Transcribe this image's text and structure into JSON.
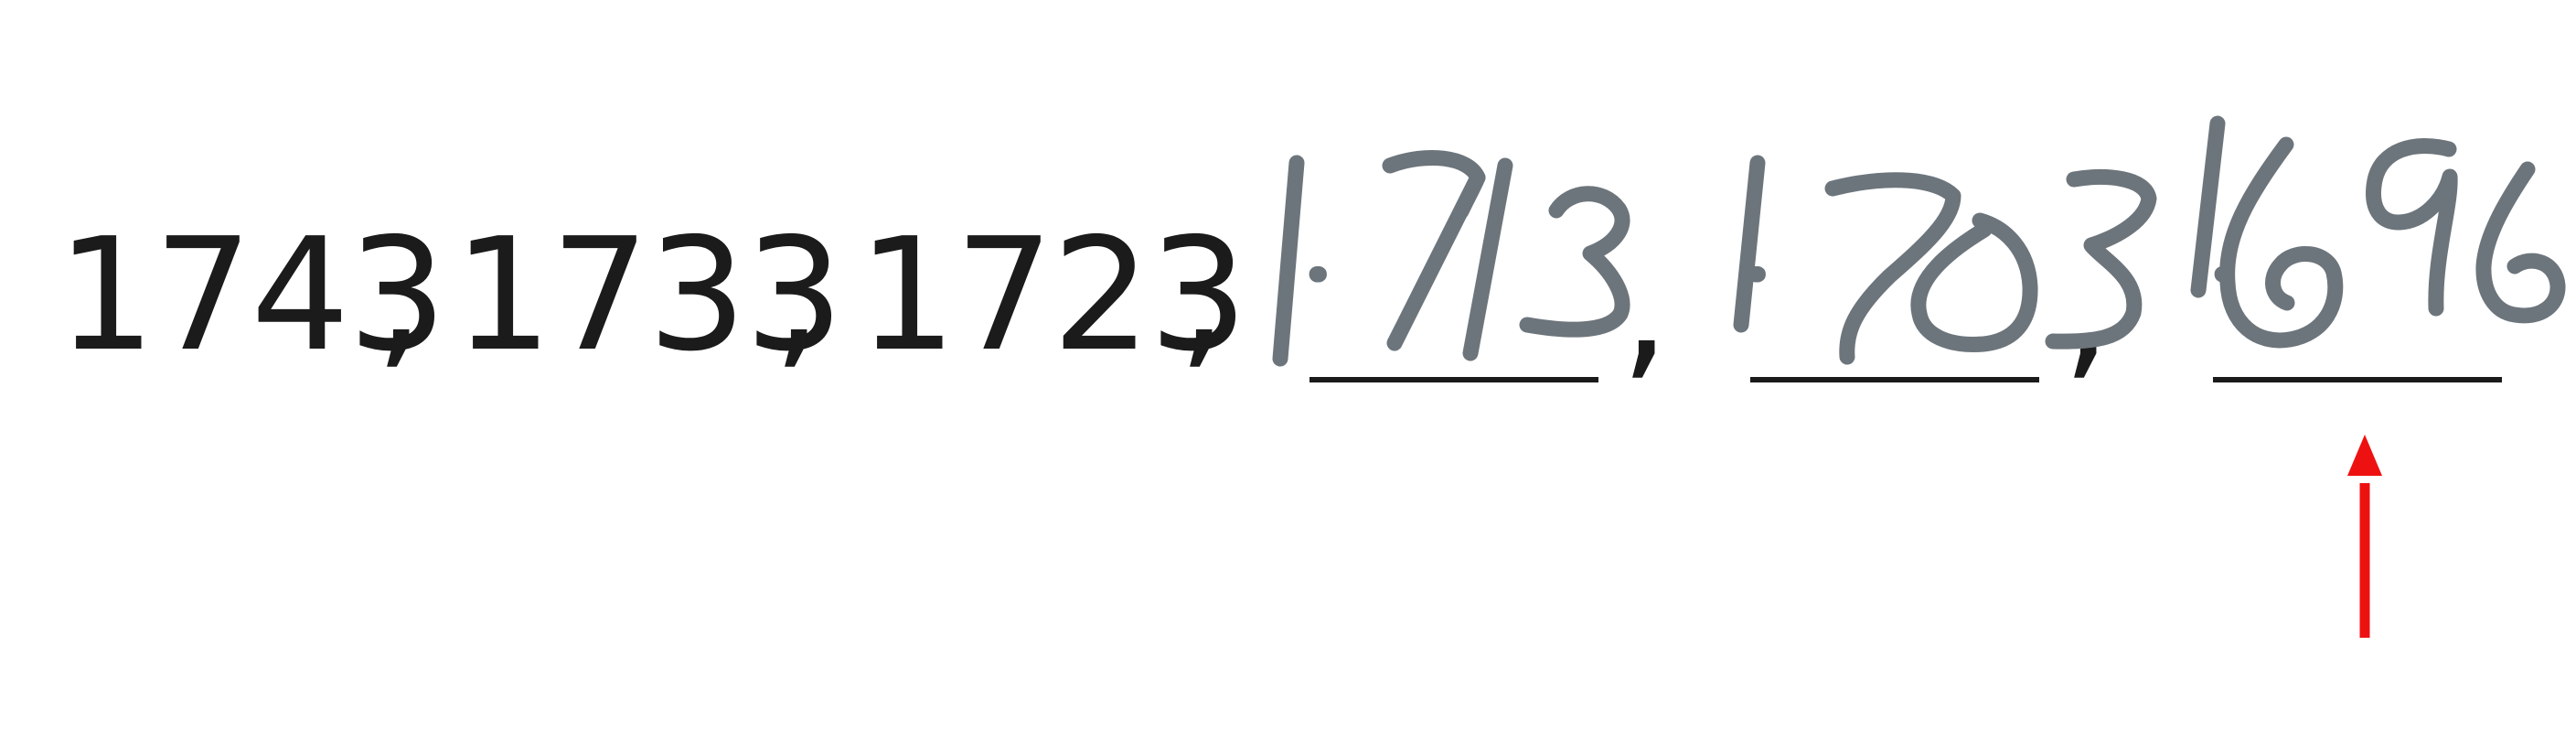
{
  "sequence": {
    "given_terms": [
      "1743",
      "1733",
      "1723"
    ],
    "separator": ","
  },
  "handwritten_answers": [
    "1713",
    "1703",
    "1696"
  ],
  "colors": {
    "printed_text": "#1b1b1b",
    "handwriting": "#6d757c",
    "arrow": "#ee1111"
  }
}
